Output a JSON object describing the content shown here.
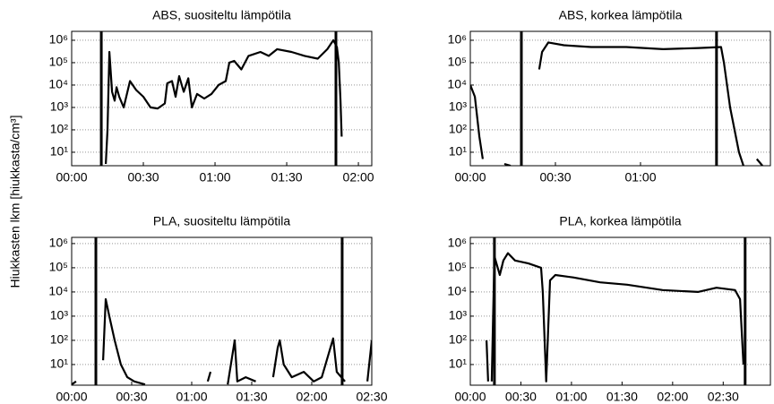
{
  "ylabel": "Hiukkasten lkm [hiukkasta/cm³]",
  "chart_data": [
    {
      "type": "line",
      "title": "ABS, suositeltu lämpötila",
      "color": "#000000",
      "yscale": "log",
      "grid": "y",
      "xlim": [
        0,
        125.6
      ],
      "ylim": [
        2.5,
        2500000
      ],
      "xticks": [
        {
          "value": 0,
          "label": "00:00"
        },
        {
          "value": 30,
          "label": "00:30"
        },
        {
          "value": 60,
          "label": "01:00"
        },
        {
          "value": 90,
          "label": "01:30"
        },
        {
          "value": 120,
          "label": "02:00"
        }
      ],
      "yticks": [
        {
          "value": 10,
          "label": "10¹"
        },
        {
          "value": 100,
          "label": "10²"
        },
        {
          "value": 1000,
          "label": "10³"
        },
        {
          "value": 10000,
          "label": "10⁴"
        },
        {
          "value": 100000,
          "label": "10⁵"
        },
        {
          "value": 1000000,
          "label": "10⁶"
        }
      ],
      "markers": [
        12.4,
        110.6
      ],
      "x": [
        14.3,
        15,
        15.8,
        16.9,
        18,
        18.8,
        19.9,
        21.8,
        24.4,
        27,
        30,
        33,
        36,
        39,
        40,
        42,
        43.5,
        45,
        46.9,
        48.8,
        50.3,
        52.5,
        55.5,
        58.5,
        61.5,
        64.5,
        66,
        68,
        71,
        74,
        79,
        82.5,
        86,
        92,
        97.5,
        103,
        107,
        109.5,
        111,
        111.8,
        112.5,
        113
      ],
      "values": [
        3,
        100,
        300000,
        5000,
        2000,
        8000,
        3000,
        1000,
        15000,
        6000,
        3000,
        1000,
        900,
        1500,
        12000,
        15000,
        3000,
        25000,
        5000,
        20000,
        1000,
        4000,
        2500,
        4000,
        10000,
        15000,
        100000,
        120000,
        50000,
        200000,
        300000,
        200000,
        400000,
        300000,
        200000,
        150000,
        400000,
        1000000,
        500000,
        100000,
        2000,
        50
      ]
    },
    {
      "type": "line",
      "title": "ABS, korkea lämpötila",
      "color": "#000000",
      "yscale": "log",
      "grid": "y",
      "xlim": [
        0,
        105.8
      ],
      "ylim": [
        2.5,
        2500000
      ],
      "xticks": [
        {
          "value": 0,
          "label": "00:00"
        },
        {
          "value": 30,
          "label": "00:30"
        },
        {
          "value": 60,
          "label": "01:00"
        }
      ],
      "yticks": [
        {
          "value": 10,
          "label": "10¹"
        },
        {
          "value": 100,
          "label": "10²"
        },
        {
          "value": 1000,
          "label": "10³"
        },
        {
          "value": 10000,
          "label": "10⁴"
        },
        {
          "value": 100000,
          "label": "10⁵"
        },
        {
          "value": 1000000,
          "label": "10⁶"
        }
      ],
      "markers": [
        18,
        86.8
      ],
      "x": [
        0,
        1.6,
        3.2,
        4.4,
        null,
        12,
        14.2,
        null,
        24.3,
        25.3,
        27.5,
        33,
        42.6,
        55,
        68,
        80.5,
        88.4,
        89.4,
        91.6,
        94.7,
        96.3,
        null,
        101,
        103
      ],
      "values": [
        10000,
        3000,
        50,
        5,
        null,
        3,
        2.5,
        null,
        50000,
        300000,
        800000,
        600000,
        500000,
        500000,
        400000,
        450000,
        500000,
        100000,
        1000,
        10,
        2.5,
        null,
        5,
        2.5
      ]
    },
    {
      "type": "line",
      "title": "PLA, suositeltu lämpötila",
      "color": "#000000",
      "yscale": "log",
      "grid": "y",
      "xlim": [
        0,
        150
      ],
      "ylim": [
        1.4,
        1800000
      ],
      "xticks": [
        {
          "value": 0,
          "label": "00:00"
        },
        {
          "value": 30,
          "label": "00:30"
        },
        {
          "value": 60,
          "label": "01:00"
        },
        {
          "value": 90,
          "label": "01:30"
        },
        {
          "value": 120,
          "label": "02:00"
        },
        {
          "value": 150,
          "label": "02:30"
        }
      ],
      "yticks": [
        {
          "value": 10,
          "label": "10¹"
        },
        {
          "value": 100,
          "label": "10²"
        },
        {
          "value": 1000,
          "label": "10³"
        },
        {
          "value": 10000,
          "label": "10⁴"
        },
        {
          "value": 100000,
          "label": "10⁵"
        },
        {
          "value": 1000000,
          "label": "10⁶"
        }
      ],
      "markers": [
        12.1,
        135.2
      ],
      "x": [
        0,
        2.2,
        null,
        15.7,
        17,
        18.8,
        21.5,
        24.6,
        27.8,
        31.3,
        36.7,
        null,
        68,
        69.4,
        null,
        78,
        81.5,
        82.8,
        87,
        92,
        null,
        100.7,
        103,
        104,
        106,
        110,
        116,
        121,
        125,
        130.7,
        132.5,
        136.6,
        null,
        147.8,
        150
      ],
      "values": [
        1.5,
        2,
        null,
        15,
        5000,
        1000,
        100,
        10,
        3,
        2,
        1.5,
        null,
        2,
        5,
        null,
        1.5,
        100,
        2,
        3,
        2,
        null,
        3,
        50,
        100,
        10,
        3,
        5,
        2,
        3,
        120,
        5,
        2,
        null,
        2,
        100
      ]
    },
    {
      "type": "line",
      "title": "PLA, korkea lämpötila",
      "color": "#000000",
      "yscale": "log",
      "grid": "y",
      "xlim": [
        0,
        178
      ],
      "ylim": [
        1.4,
        1800000
      ],
      "xticks": [
        {
          "value": 0,
          "label": "00:00"
        },
        {
          "value": 30,
          "label": "00:30"
        },
        {
          "value": 60,
          "label": "01:00"
        },
        {
          "value": 90,
          "label": "01:30"
        },
        {
          "value": 120,
          "label": "02:00"
        },
        {
          "value": 150,
          "label": "02:30"
        }
      ],
      "yticks": [
        {
          "value": 10,
          "label": "10¹"
        },
        {
          "value": 100,
          "label": "10²"
        },
        {
          "value": 1000,
          "label": "10³"
        },
        {
          "value": 10000,
          "label": "10⁴"
        },
        {
          "value": 100000,
          "label": "10⁵"
        },
        {
          "value": 1000000,
          "label": "10⁶"
        }
      ],
      "markers": [
        14.3,
        163
      ],
      "x": [
        9.6,
        10.6,
        null,
        12.7,
        14.3,
        17.5,
        19.6,
        22.3,
        26.5,
        34.5,
        42,
        43,
        45,
        47.3,
        50.4,
        61,
        77,
        93,
        114,
        135,
        146,
        157,
        160,
        162
      ],
      "values": [
        100,
        2,
        null,
        2,
        300000,
        50000,
        200000,
        400000,
        200000,
        150000,
        100000,
        10000,
        2,
        30000,
        50000,
        40000,
        25000,
        20000,
        12000,
        10000,
        15000,
        12000,
        5000,
        10
      ]
    }
  ]
}
